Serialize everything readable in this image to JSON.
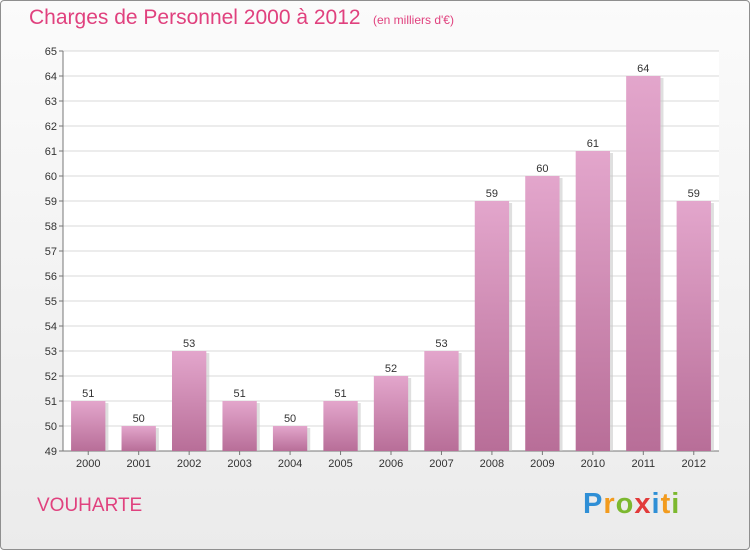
{
  "header": {
    "title": "Charges de Personnel 2000 à 2012",
    "subtitle": "(en milliers d'€)"
  },
  "footer": {
    "place": "VOUHARTE",
    "logo": "Proxiti",
    "logo_letters": [
      {
        "ch": "P",
        "color": "#2f8fd6"
      },
      {
        "ch": "r",
        "color": "#f29b1e"
      },
      {
        "ch": "o",
        "color": "#7cb82f"
      },
      {
        "ch": "x",
        "color": "#e23a3a"
      },
      {
        "ch": "i",
        "color": "#2f8fd6"
      },
      {
        "ch": "t",
        "color": "#f29b1e"
      },
      {
        "ch": "i",
        "color": "#7cb82f"
      }
    ]
  },
  "colors": {
    "accent": "#e0417e",
    "bar_top": "#e3a6cc",
    "bar_bottom": "#b86e98",
    "grid": "#d8d8d8"
  },
  "chart_data": {
    "type": "bar",
    "title": "Charges de Personnel 2000 à 2012",
    "subtitle": "(en milliers d'€)",
    "xlabel": "",
    "ylabel": "",
    "categories": [
      "2000",
      "2001",
      "2002",
      "2003",
      "2004",
      "2005",
      "2006",
      "2007",
      "2008",
      "2009",
      "2010",
      "2011",
      "2012"
    ],
    "values": [
      51,
      50,
      53,
      51,
      50,
      51,
      52,
      53,
      59,
      60,
      61,
      64,
      59
    ],
    "ylim": [
      49,
      65
    ],
    "yticks": [
      49,
      50,
      51,
      52,
      53,
      54,
      55,
      56,
      57,
      58,
      59,
      60,
      61,
      62,
      63,
      64,
      65
    ],
    "grid": true,
    "legend": "none"
  }
}
